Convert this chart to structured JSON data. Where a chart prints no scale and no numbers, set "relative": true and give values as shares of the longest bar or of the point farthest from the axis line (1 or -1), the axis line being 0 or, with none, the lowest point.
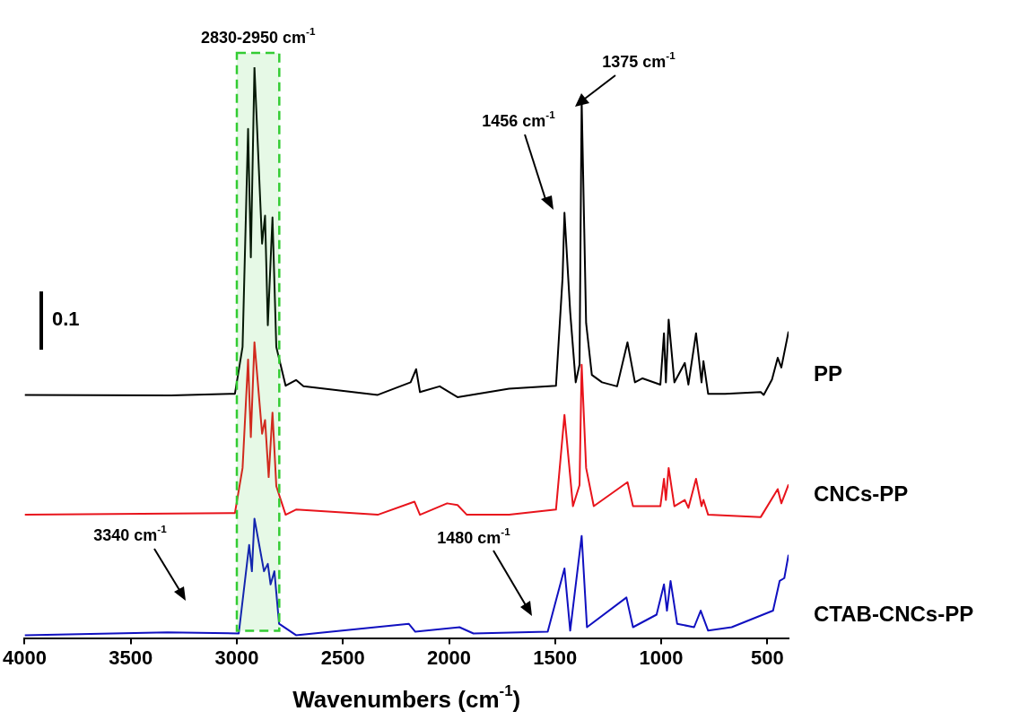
{
  "chart_data": {
    "type": "line",
    "xlabel": "Wavenumbers (cm$^{-1}$)",
    "relative": true,
    "xlim": [
      4000,
      400
    ],
    "xticks": [
      4000,
      3500,
      3000,
      2500,
      2000,
      1500,
      1000,
      500
    ],
    "grid": false,
    "legend": false,
    "marker": "none",
    "line_style": "solid",
    "series": [
      {
        "name": "PP",
        "color": "#000000",
        "x": [
          4000,
          3310,
          3009,
          2973,
          2947,
          2934,
          2917,
          2881,
          2867,
          2854,
          2832,
          2814,
          2770,
          2721,
          2686,
          2336,
          2181,
          2155,
          2137,
          2044,
          1960,
          1717,
          1496,
          1465,
          1456,
          1429,
          1403,
          1385,
          1375,
          1354,
          1327,
          1279,
          1208,
          1159,
          1124,
          1088,
          1004,
          987,
          978,
          965,
          938,
          889,
          872,
          836,
          810,
          801,
          779,
          699,
          531,
          517,
          478,
          451,
          434,
          400
        ],
        "values": [
          0.426,
          0.425,
          0.428,
          0.51,
          0.892,
          0.667,
          1,
          0.691,
          0.74,
          0.548,
          0.737,
          0.51,
          0.442,
          0.452,
          0.441,
          0.426,
          0.448,
          0.471,
          0.431,
          0.441,
          0.422,
          0.437,
          0.442,
          0.631,
          0.745,
          0.571,
          0.448,
          0.479,
          0.943,
          0.552,
          0.461,
          0.448,
          0.441,
          0.518,
          0.448,
          0.455,
          0.444,
          0.534,
          0.448,
          0.558,
          0.448,
          0.482,
          0.444,
          0.534,
          0.448,
          0.485,
          0.428,
          0.428,
          0.431,
          0.426,
          0.453,
          0.491,
          0.474,
          0.537
        ]
      },
      {
        "name": "CNCs-PP",
        "color": "#e8141c",
        "x": [
          4000,
          3009,
          2973,
          2947,
          2934,
          2917,
          2881,
          2867,
          2850,
          2832,
          2814,
          2770,
          2721,
          2336,
          2163,
          2137,
          2009,
          1960,
          1916,
          1717,
          1496,
          1456,
          1416,
          1385,
          1375,
          1354,
          1318,
          1159,
          1133,
          1004,
          987,
          978,
          965,
          938,
          889,
          872,
          836,
          810,
          801,
          779,
          531,
          451,
          434,
          400
        ],
        "values": [
          0.216,
          0.219,
          0.298,
          0.488,
          0.352,
          0.518,
          0.358,
          0.382,
          0.282,
          0.395,
          0.266,
          0.216,
          0.225,
          0.216,
          0.239,
          0.216,
          0.236,
          0.233,
          0.216,
          0.216,
          0.225,
          0.391,
          0.231,
          0.268,
          0.479,
          0.298,
          0.231,
          0.273,
          0.231,
          0.231,
          0.279,
          0.242,
          0.298,
          0.231,
          0.242,
          0.228,
          0.279,
          0.231,
          0.242,
          0.216,
          0.212,
          0.261,
          0.236,
          0.269
        ]
      },
      {
        "name": "CTAB-CNCs-PP",
        "color": "#1010c0",
        "x": [
          4000,
          3327,
          2991,
          2942,
          2929,
          2917,
          2872,
          2854,
          2841,
          2823,
          2801,
          2721,
          2190,
          2159,
          1951,
          1885,
          1535,
          1456,
          1429,
          1375,
          1350,
          1164,
          1133,
          1022,
          987,
          973,
          956,
          925,
          845,
          814,
          779,
          668,
          473,
          442,
          420,
          400
        ],
        "values": [
          0.005,
          0.01,
          0.008,
          0.163,
          0.117,
          0.209,
          0.117,
          0.13,
          0.094,
          0.117,
          0.025,
          0.005,
          0.025,
          0.011,
          0.019,
          0.008,
          0.011,
          0.122,
          0.013,
          0.179,
          0.019,
          0.071,
          0.019,
          0.041,
          0.094,
          0.048,
          0.1,
          0.025,
          0.019,
          0.048,
          0.013,
          0.019,
          0.048,
          0.1,
          0.105,
          0.146
        ]
      }
    ],
    "bands": [
      {
        "axis": "x",
        "from": 3000,
        "to": 2800,
        "label": "2830-2950 cm$^{-1}$",
        "color": "#33cc33"
      }
    ],
    "annotations": [
      "1456 cm$^{-1}$",
      "1375 cm$^{-1}$",
      "3340 cm$^{-1}$",
      "1480 cm$^{-1}$",
      "0.1"
    ]
  }
}
